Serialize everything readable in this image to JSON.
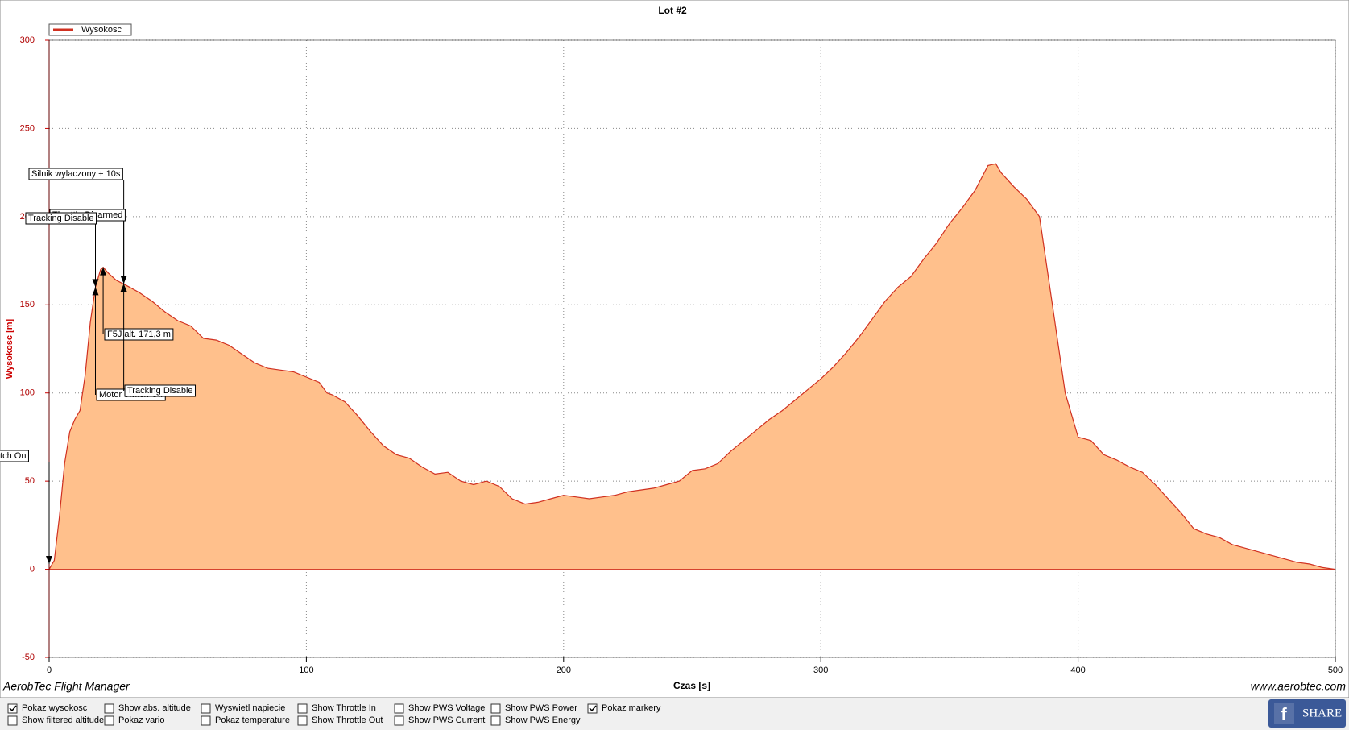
{
  "chart_data": {
    "type": "area",
    "title": "Lot #2",
    "x_label": "Czas [s]",
    "y_label": "Wysokosc [m]",
    "series": [
      {
        "name": "Wysokosc",
        "color": "#ffc08c",
        "line_color": "#d03020",
        "x": [
          0,
          2,
          4,
          6,
          8,
          10,
          12,
          14,
          16,
          18,
          20,
          21,
          23,
          26,
          30,
          35,
          40,
          45,
          50,
          55,
          60,
          65,
          70,
          75,
          80,
          85,
          90,
          95,
          100,
          105,
          108,
          110,
          115,
          120,
          125,
          130,
          135,
          140,
          145,
          150,
          155,
          160,
          165,
          170,
          175,
          180,
          185,
          190,
          195,
          200,
          205,
          210,
          215,
          220,
          225,
          230,
          235,
          240,
          245,
          250,
          255,
          260,
          265,
          270,
          275,
          280,
          285,
          290,
          295,
          300,
          305,
          310,
          315,
          320,
          325,
          330,
          335,
          340,
          345,
          350,
          355,
          360,
          365,
          368,
          370,
          375,
          380,
          385,
          390,
          395,
          400,
          405,
          410,
          415,
          420,
          425,
          430,
          435,
          440,
          445,
          450,
          455,
          460,
          465,
          470,
          475,
          480,
          485,
          490,
          495,
          500
        ],
        "values": [
          0,
          5,
          30,
          60,
          78,
          85,
          90,
          110,
          140,
          160,
          170,
          171.3,
          168,
          164,
          161,
          157,
          152,
          146,
          141,
          138,
          131,
          130,
          127,
          122,
          117,
          114,
          113,
          112,
          109,
          106,
          100,
          99,
          95,
          87,
          78,
          70,
          65,
          63,
          58,
          54,
          55,
          50,
          48,
          50,
          47,
          40,
          37,
          38,
          40,
          42,
          41,
          40,
          41,
          42,
          44,
          45,
          46,
          48,
          50,
          56,
          57,
          60,
          67,
          73,
          79,
          85,
          90,
          96,
          102,
          108,
          115,
          123,
          132,
          142,
          152,
          160,
          166,
          176,
          185,
          196,
          205,
          215,
          229,
          230,
          225,
          217,
          210,
          200,
          150,
          100,
          75,
          73,
          65,
          62,
          58,
          55,
          48,
          40,
          32,
          23,
          20,
          18,
          14,
          12,
          10,
          8,
          6,
          4,
          3,
          1,
          0
        ]
      }
    ],
    "xlim": [
      0,
      500
    ],
    "xticks": [
      0,
      100,
      200,
      300,
      400,
      500
    ],
    "ylim": [
      -50,
      300
    ],
    "yticks": [
      -50,
      0,
      50,
      100,
      150,
      200,
      250,
      300
    ],
    "grid": true,
    "legend": "top-left",
    "annotations": [
      {
        "label": "Silnik wylaczony + 10s",
        "x": 29,
        "y": 162
      },
      {
        "label": "Throttle Disarmed",
        "x": 29,
        "y": 162
      },
      {
        "label": "Tracking Disable",
        "x": 18,
        "y": 160
      },
      {
        "label": "F5J alt. 171,3 m",
        "x": 21,
        "y": 171.3
      },
      {
        "label": "Motor switch Off",
        "x": 18,
        "y": 160
      },
      {
        "label": "Tracking Disable",
        "x": 29,
        "y": 162
      },
      {
        "label": "Motor switch On",
        "x": 0,
        "y": 3
      }
    ]
  },
  "footer": {
    "app": "AerobTec Flight Manager",
    "site": "www.aerobtec.com",
    "share": "SHARE",
    "share_icon": "f"
  },
  "controls": [
    {
      "label": "Pokaz wysokosc",
      "checked": true
    },
    {
      "label": "Show filtered altitude",
      "checked": false
    },
    {
      "label": "Show abs. altitude",
      "checked": false
    },
    {
      "label": "Pokaz vario",
      "checked": false
    },
    {
      "label": "Wyswietl napiecie",
      "checked": false
    },
    {
      "label": "Pokaz temperature",
      "checked": false
    },
    {
      "label": "Show Throttle In",
      "checked": false
    },
    {
      "label": "Show Throttle Out",
      "checked": false
    },
    {
      "label": "Show PWS Voltage",
      "checked": false
    },
    {
      "label": "Show PWS Current",
      "checked": false
    },
    {
      "label": "Show PWS Power",
      "checked": false
    },
    {
      "label": "Show PWS Energy",
      "checked": false
    },
    {
      "label": "Pokaz markery",
      "checked": true
    }
  ]
}
